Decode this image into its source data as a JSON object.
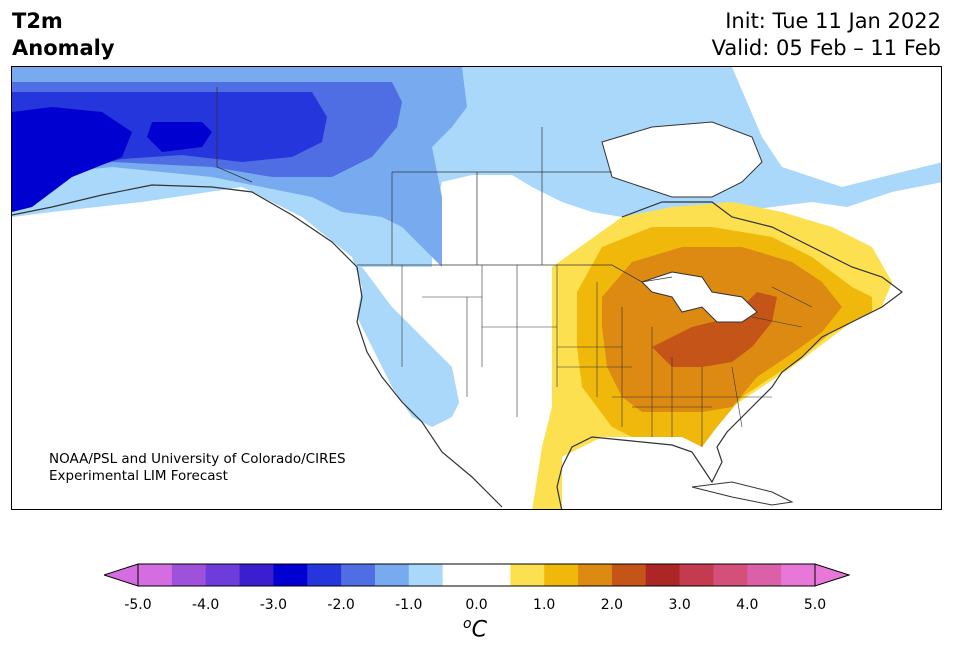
{
  "header": {
    "variable": "T2m",
    "subtitle": "Anomaly",
    "init": "Init: Tue 11 Jan 2022",
    "valid": "Valid: 05 Feb – 11 Feb"
  },
  "map": {
    "region": "North America",
    "credit_line1": "NOAA/PSL and University of Colorado/CIRES",
    "credit_line2": "Experimental LIM Forecast",
    "anomaly_regions": [
      {
        "area": "Alaska",
        "level": "-3.0 to -3.5"
      },
      {
        "area": "Yukon / Northwest Territories",
        "level": "-2.0 to -3.0"
      },
      {
        "area": "Northern Canada",
        "level": "-0.5 to -1.0"
      },
      {
        "area": "Pacific Northwest / Great Basin",
        "level": "-0.5 to -1.0"
      },
      {
        "area": "Ohio Valley",
        "level": "+2.0 to +2.5"
      },
      {
        "area": "Eastern US / Great Lakes",
        "level": "+1.0 to +2.0"
      },
      {
        "area": "Texas / Gulf Coast",
        "level": "+0.5 to +1.0"
      }
    ]
  },
  "colorbar": {
    "unit_label": "C",
    "unit_sup": "o",
    "ticks": [
      "-5.0",
      "-4.0",
      "-3.0",
      "-2.0",
      "-1.0",
      "0.0",
      "1.0",
      "2.0",
      "3.0",
      "4.0",
      "5.0"
    ],
    "colors": [
      "#d46ee0",
      "#9e52dc",
      "#6f3cdc",
      "#3a1ed0",
      "#0000d0",
      "#2436dc",
      "#4f6ee4",
      "#78aaf0",
      "#aad8fa",
      "#ffffff",
      "#ffffff",
      "#fde050",
      "#f1b80c",
      "#dd8a12",
      "#c45418",
      "#ac2626",
      "#c43a4e",
      "#d4507a",
      "#dc60a8",
      "#e878d8"
    ],
    "under_color": "#d46ee0",
    "over_color": "#e878d8"
  }
}
